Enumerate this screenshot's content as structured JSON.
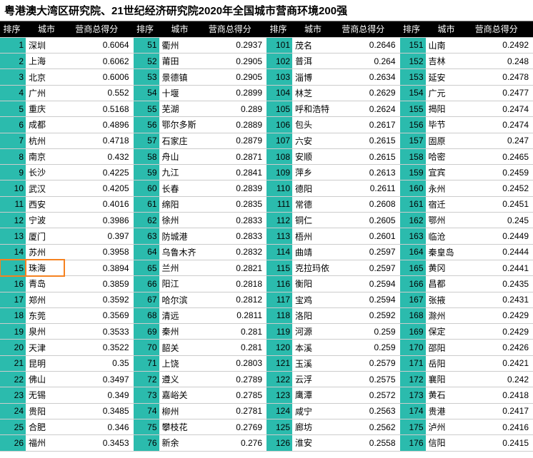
{
  "title": "粤港澳大湾区研究院、21世纪经济研究院2020年全国城市营商环境200强",
  "headers": {
    "rank": "排序",
    "city": "城市",
    "score": "营商总得分"
  },
  "highlight_rank": 15,
  "blocks": [
    [
      [
        1,
        "深圳",
        "0.6064"
      ],
      [
        2,
        "上海",
        "0.6062"
      ],
      [
        3,
        "北京",
        "0.6006"
      ],
      [
        4,
        "广州",
        "0.552"
      ],
      [
        5,
        "重庆",
        "0.5168"
      ],
      [
        6,
        "成都",
        "0.4896"
      ],
      [
        7,
        "杭州",
        "0.4718"
      ],
      [
        8,
        "南京",
        "0.432"
      ],
      [
        9,
        "长沙",
        "0.4225"
      ],
      [
        10,
        "武汉",
        "0.4205"
      ],
      [
        11,
        "西安",
        "0.4016"
      ],
      [
        12,
        "宁波",
        "0.3986"
      ],
      [
        13,
        "厦门",
        "0.397"
      ],
      [
        14,
        "苏州",
        "0.3958"
      ],
      [
        15,
        "珠海",
        "0.3894"
      ],
      [
        16,
        "青岛",
        "0.3859"
      ],
      [
        17,
        "郑州",
        "0.3592"
      ],
      [
        18,
        "东莞",
        "0.3569"
      ],
      [
        19,
        "泉州",
        "0.3533"
      ],
      [
        20,
        "天津",
        "0.3522"
      ],
      [
        21,
        "昆明",
        "0.35"
      ],
      [
        22,
        "佛山",
        "0.3497"
      ],
      [
        23,
        "无锡",
        "0.349"
      ],
      [
        24,
        "贵阳",
        "0.3485"
      ],
      [
        25,
        "合肥",
        "0.346"
      ],
      [
        26,
        "福州",
        "0.3453"
      ]
    ],
    [
      [
        51,
        "衢州",
        "0.2937"
      ],
      [
        52,
        "莆田",
        "0.2905"
      ],
      [
        53,
        "景德镇",
        "0.2905"
      ],
      [
        54,
        "十堰",
        "0.2899"
      ],
      [
        55,
        "芜湖",
        "0.289"
      ],
      [
        56,
        "鄂尔多斯",
        "0.2889"
      ],
      [
        57,
        "石家庄",
        "0.2879"
      ],
      [
        58,
        "舟山",
        "0.2871"
      ],
      [
        59,
        "九江",
        "0.2841"
      ],
      [
        60,
        "长春",
        "0.2839"
      ],
      [
        61,
        "绵阳",
        "0.2835"
      ],
      [
        62,
        "徐州",
        "0.2833"
      ],
      [
        63,
        "防城港",
        "0.2833"
      ],
      [
        64,
        "乌鲁木齐",
        "0.2832"
      ],
      [
        65,
        "兰州",
        "0.2821"
      ],
      [
        66,
        "阳江",
        "0.2818"
      ],
      [
        67,
        "哈尔滨",
        "0.2812"
      ],
      [
        68,
        "清远",
        "0.2811"
      ],
      [
        69,
        "秦州",
        "0.281"
      ],
      [
        70,
        "韶关",
        "0.281"
      ],
      [
        71,
        "上饶",
        "0.2803"
      ],
      [
        72,
        "遵义",
        "0.2789"
      ],
      [
        73,
        "嘉峪关",
        "0.2785"
      ],
      [
        74,
        "柳州",
        "0.2781"
      ],
      [
        75,
        "攀枝花",
        "0.2769"
      ],
      [
        76,
        "新余",
        "0.276"
      ]
    ],
    [
      [
        101,
        "茂名",
        "0.2646"
      ],
      [
        102,
        "普洱",
        "0.264"
      ],
      [
        103,
        "淄博",
        "0.2634"
      ],
      [
        104,
        "林芝",
        "0.2629"
      ],
      [
        105,
        "呼和浩特",
        "0.2624"
      ],
      [
        106,
        "包头",
        "0.2617"
      ],
      [
        107,
        "六安",
        "0.2615"
      ],
      [
        108,
        "安顺",
        "0.2615"
      ],
      [
        109,
        "萍乡",
        "0.2613"
      ],
      [
        110,
        "德阳",
        "0.2611"
      ],
      [
        111,
        "常德",
        "0.2608"
      ],
      [
        112,
        "铜仁",
        "0.2605"
      ],
      [
        113,
        "梧州",
        "0.2601"
      ],
      [
        114,
        "曲靖",
        "0.2597"
      ],
      [
        115,
        "克拉玛依",
        "0.2597"
      ],
      [
        116,
        "衡阳",
        "0.2594"
      ],
      [
        117,
        "宝鸡",
        "0.2594"
      ],
      [
        118,
        "洛阳",
        "0.2592"
      ],
      [
        119,
        "河源",
        "0.259"
      ],
      [
        120,
        "本溪",
        "0.259"
      ],
      [
        121,
        "玉溪",
        "0.2579"
      ],
      [
        122,
        "云浮",
        "0.2575"
      ],
      [
        123,
        "鹰潭",
        "0.2572"
      ],
      [
        124,
        "咸宁",
        "0.2563"
      ],
      [
        125,
        "廊坊",
        "0.2562"
      ],
      [
        126,
        "淮安",
        "0.2558"
      ]
    ],
    [
      [
        151,
        "山南",
        "0.2492"
      ],
      [
        152,
        "吉林",
        "0.248"
      ],
      [
        153,
        "延安",
        "0.2478"
      ],
      [
        154,
        "广元",
        "0.2477"
      ],
      [
        155,
        "揭阳",
        "0.2474"
      ],
      [
        156,
        "毕节",
        "0.2474"
      ],
      [
        157,
        "固原",
        "0.247"
      ],
      [
        158,
        "哈密",
        "0.2465"
      ],
      [
        159,
        "宜宾",
        "0.2459"
      ],
      [
        160,
        "永州",
        "0.2452"
      ],
      [
        161,
        "宿迁",
        "0.2451"
      ],
      [
        162,
        "鄂州",
        "0.245"
      ],
      [
        163,
        "临沧",
        "0.2449"
      ],
      [
        164,
        "秦皇岛",
        "0.2444"
      ],
      [
        165,
        "黄冈",
        "0.2441"
      ],
      [
        166,
        "昌都",
        "0.2435"
      ],
      [
        167,
        "张掖",
        "0.2431"
      ],
      [
        168,
        "滁州",
        "0.2429"
      ],
      [
        169,
        "保定",
        "0.2429"
      ],
      [
        170,
        "邵阳",
        "0.2426"
      ],
      [
        171,
        "岳阳",
        "0.2421"
      ],
      [
        172,
        "襄阳",
        "0.242"
      ],
      [
        173,
        "黄石",
        "0.2418"
      ],
      [
        174,
        "贵港",
        "0.2417"
      ],
      [
        175,
        "泸州",
        "0.2416"
      ],
      [
        176,
        "信阳",
        "0.2415"
      ]
    ]
  ]
}
